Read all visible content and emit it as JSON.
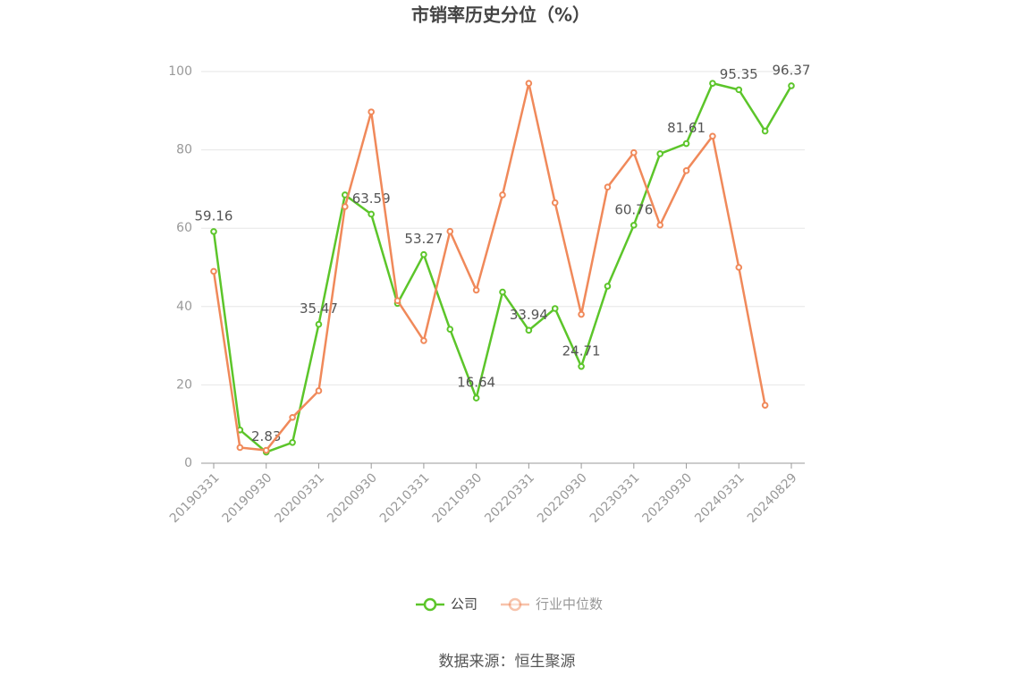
{
  "chart_data": {
    "type": "line",
    "title": "市销率历史分位（%）",
    "source": "数据来源：恒生聚源",
    "categories": [
      "20190331",
      null,
      "20190930",
      null,
      "20200331",
      null,
      "20200930",
      null,
      "20210331",
      null,
      "20210930",
      null,
      "20220331",
      null,
      "20220930",
      null,
      "20230331",
      null,
      "20230930",
      null,
      "20240331",
      null,
      "20240829"
    ],
    "series": [
      {
        "name": "公司",
        "color": "#5cc52a",
        "values": [
          59.16,
          8.5,
          2.83,
          5.3,
          35.47,
          68.5,
          63.59,
          40.8,
          53.27,
          34.2,
          16.64,
          43.7,
          33.94,
          39.5,
          24.71,
          45.2,
          60.76,
          79,
          81.61,
          97,
          95.35,
          84.8,
          96.37
        ],
        "value_labels": [
          "59.16",
          null,
          "2.83",
          null,
          "35.47",
          null,
          "63.59",
          null,
          "53.27",
          null,
          "16.64",
          null,
          "33.94",
          null,
          "24.71",
          null,
          "60.76",
          null,
          "81.61",
          null,
          "95.35",
          null,
          "96.37"
        ]
      },
      {
        "name": "行业中位数",
        "color": "#f0895a",
        "values": [
          49,
          4,
          3.3,
          11.7,
          18.5,
          65.5,
          89.7,
          41.5,
          31.3,
          59.2,
          44.2,
          68.5,
          97,
          66.5,
          38,
          70.5,
          79.3,
          60.8,
          74.7,
          83.5,
          50,
          14.8,
          null
        ]
      }
    ],
    "ylim": [
      0,
      100
    ],
    "yticks": [
      0,
      20,
      40,
      60,
      80,
      100
    ],
    "grid": true
  }
}
